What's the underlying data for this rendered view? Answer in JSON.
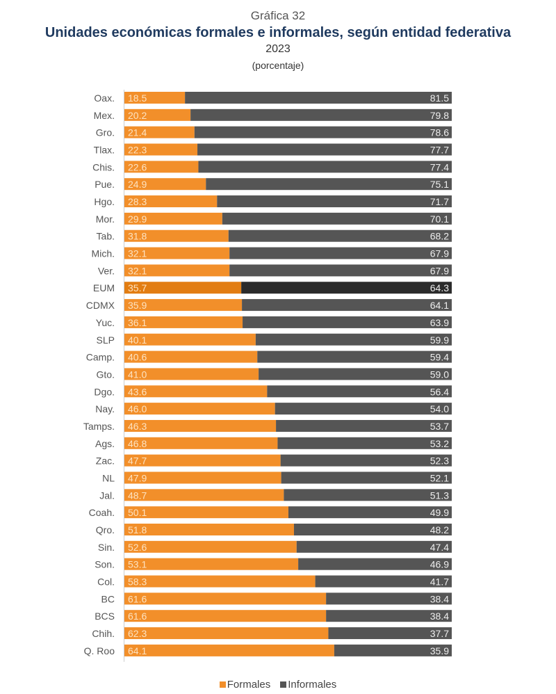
{
  "chart_data": {
    "type": "bar",
    "stacked": true,
    "orientation": "horizontal",
    "subtitle": "Gráfica 32",
    "title": "Unidades económicas formales e informales, según entidad federativa",
    "year": "2023",
    "unit": "(porcentaje)",
    "xlim": [
      0,
      100
    ],
    "grid": false,
    "legend_position": "bottom",
    "categories": [
      "Oax.",
      "Mex.",
      "Gro.",
      "Tlax.",
      "Chis.",
      "Pue.",
      "Hgo.",
      "Mor.",
      "Tab.",
      "Mich.",
      "Ver.",
      "EUM",
      "CDMX",
      "Yuc.",
      "SLP",
      "Camp.",
      "Gto.",
      "Dgo.",
      "Nay.",
      "Tamps.",
      "Ags.",
      "Zac.",
      "NL",
      "Jal.",
      "Coah.",
      "Qro.",
      "Sin.",
      "Son.",
      "Col.",
      "BC",
      "BCS",
      "Chih.",
      "Q. Roo"
    ],
    "highlight": "EUM",
    "series": [
      {
        "name": "Formales",
        "color": "#f28f2a",
        "highlight_color": "#e27d12",
        "values": [
          "18.5",
          "20.2",
          "21.4",
          "22.3",
          "22.6",
          "24.9",
          "28.3",
          "29.9",
          "31.8",
          "32.1",
          "32.1",
          "35.7",
          "35.9",
          "36.1",
          "40.1",
          "40.6",
          "41.0",
          "43.6",
          "46.0",
          "46.3",
          "46.8",
          "47.7",
          "47.9",
          "48.7",
          "50.1",
          "51.8",
          "52.6",
          "53.1",
          "58.3",
          "61.6",
          "61.6",
          "62.3",
          "64.1"
        ]
      },
      {
        "name": "Informales",
        "color": "#555555",
        "highlight_color": "#2b2b2b",
        "values": [
          "81.5",
          "79.8",
          "78.6",
          "77.7",
          "77.4",
          "75.1",
          "71.7",
          "70.1",
          "68.2",
          "67.9",
          "67.9",
          "64.3",
          "64.1",
          "63.9",
          "59.9",
          "59.4",
          "59.0",
          "56.4",
          "54.0",
          "53.7",
          "53.2",
          "52.3",
          "52.1",
          "51.3",
          "49.9",
          "48.2",
          "47.4",
          "46.9",
          "41.7",
          "38.4",
          "38.4",
          "37.7",
          "35.9"
        ]
      }
    ]
  }
}
